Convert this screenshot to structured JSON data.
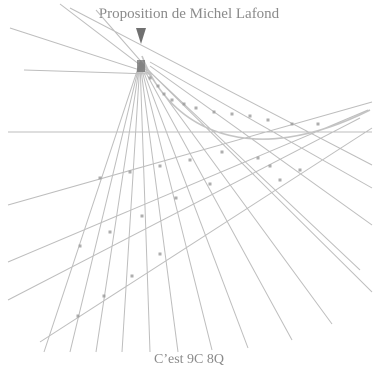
{
  "title": "Proposition de Michel Lafond",
  "caption": "C’est 9C 8Q",
  "colors": {
    "line": "#bdbdbd",
    "curve": "#c4c4c4",
    "marker": "#9a9a9a",
    "apex": "#707070",
    "text": "#8a8a8a"
  }
}
